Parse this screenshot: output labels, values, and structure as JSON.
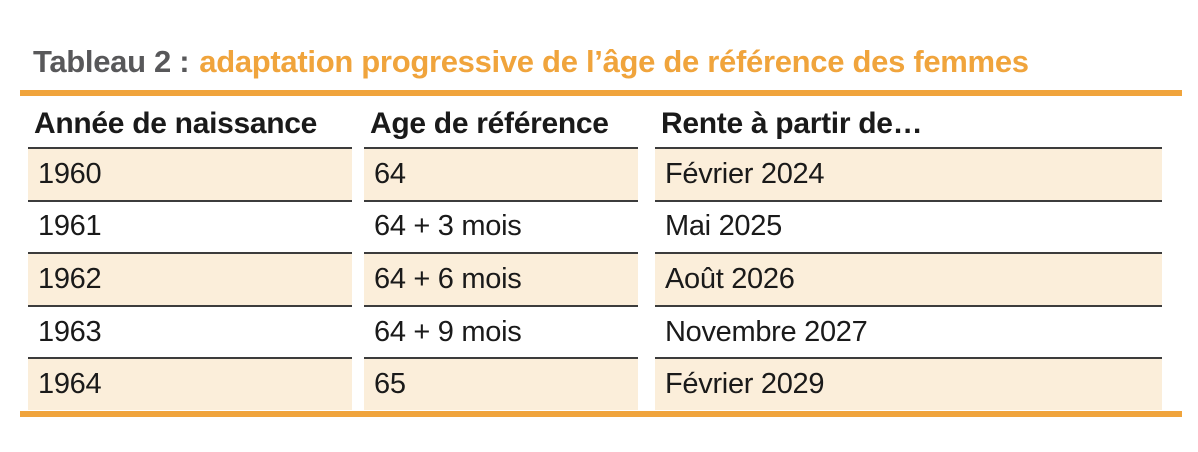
{
  "title": {
    "label": "Tableau 2 :",
    "text": "adaptation progressive de l’âge de référence des femmes"
  },
  "colors": {
    "accent_orange": "#F0A43C",
    "title_gray": "#58585A",
    "row_shade_cream": "#FBEEDA",
    "separator_dark": "#3C3C3C",
    "text_black": "#1A1A1A"
  },
  "table": {
    "headers": [
      "Année de naissance",
      "Age de référence",
      "Rente à partir de…"
    ],
    "rows": [
      {
        "cells": [
          "1960",
          "64",
          "Février 2024"
        ],
        "shaded": true
      },
      {
        "cells": [
          "1961",
          "64 + 3 mois",
          "Mai 2025"
        ],
        "shaded": false
      },
      {
        "cells": [
          "1962",
          "64 + 6 mois",
          "Août 2026"
        ],
        "shaded": true
      },
      {
        "cells": [
          "1963",
          "64 + 9 mois",
          "Novembre 2027"
        ],
        "shaded": false
      },
      {
        "cells": [
          "1964",
          "65",
          "Février 2029"
        ],
        "shaded": true
      }
    ]
  }
}
